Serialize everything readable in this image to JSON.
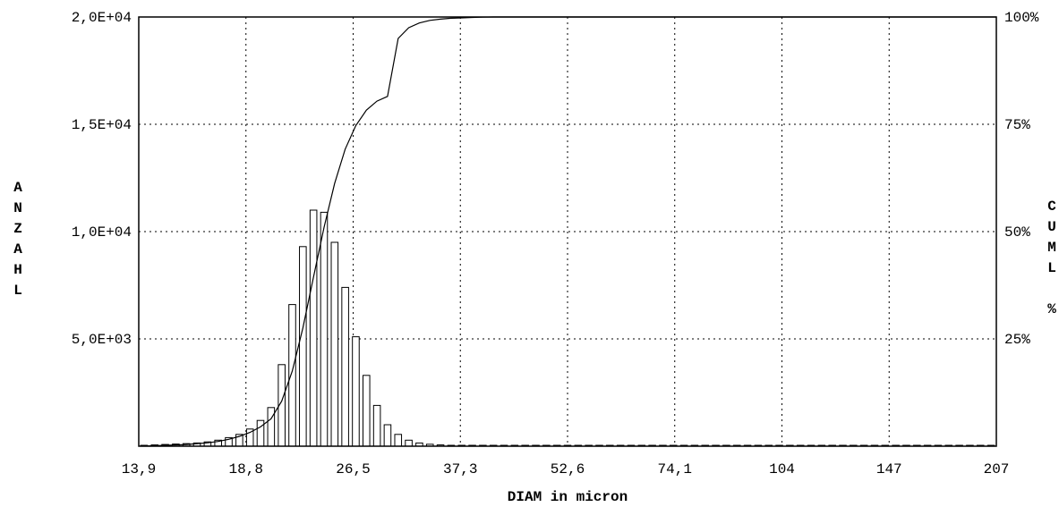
{
  "chart_data": {
    "type": "bar",
    "xlabel": "DIAM in micron",
    "ylabel_left": "ANZAHL",
    "ylabel_right_lines": [
      "CUML",
      "%"
    ],
    "x_tick_labels": [
      "13,9",
      "18,8",
      "26,5",
      "37,3",
      "52,6",
      "74,1",
      "104",
      "147",
      "207"
    ],
    "left_tick_labels": [
      "2,0E+04",
      "1,5E+04",
      "1,0E+04",
      "5,0E+03"
    ],
    "left_tick_values": [
      20000,
      15000,
      10000,
      5000
    ],
    "right_tick_labels": [
      "100%",
      "75%",
      "50%",
      "25%"
    ],
    "right_tick_values": [
      100,
      75,
      50,
      25
    ],
    "ylim": [
      0,
      20000
    ],
    "grid": true,
    "histogram": {
      "name": "ANZAHL",
      "values": [
        40,
        60,
        80,
        100,
        120,
        150,
        200,
        280,
        400,
        550,
        800,
        1200,
        1800,
        3800,
        6600,
        9300,
        11000,
        10900,
        9500,
        7400,
        5100,
        3300,
        1900,
        1000,
        550,
        280,
        150,
        90,
        60,
        40,
        30,
        20,
        15,
        10,
        8,
        6,
        5,
        4,
        3,
        3,
        2,
        2,
        2,
        1,
        1,
        1,
        1,
        1,
        1,
        1,
        1,
        1,
        1,
        1,
        1,
        1,
        1,
        1,
        1,
        1,
        1,
        1,
        1,
        1,
        1,
        1,
        1,
        1,
        1,
        1,
        1,
        1,
        1,
        1,
        1,
        1,
        1,
        1,
        1,
        1,
        1
      ]
    },
    "cumulative": {
      "name": "CUML %",
      "values": [
        0.05,
        0.1,
        0.2,
        0.3,
        0.4,
        0.6,
        0.8,
        1.1,
        1.6,
        2.3,
        3.2,
        4.5,
        6.4,
        10.5,
        17.5,
        27.5,
        39.3,
        51.0,
        61.2,
        69.2,
        74.7,
        78.3,
        80.4,
        81.5,
        95.0,
        97.5,
        98.6,
        99.2,
        99.5,
        99.7,
        99.8,
        99.9,
        99.95,
        100
      ]
    }
  }
}
